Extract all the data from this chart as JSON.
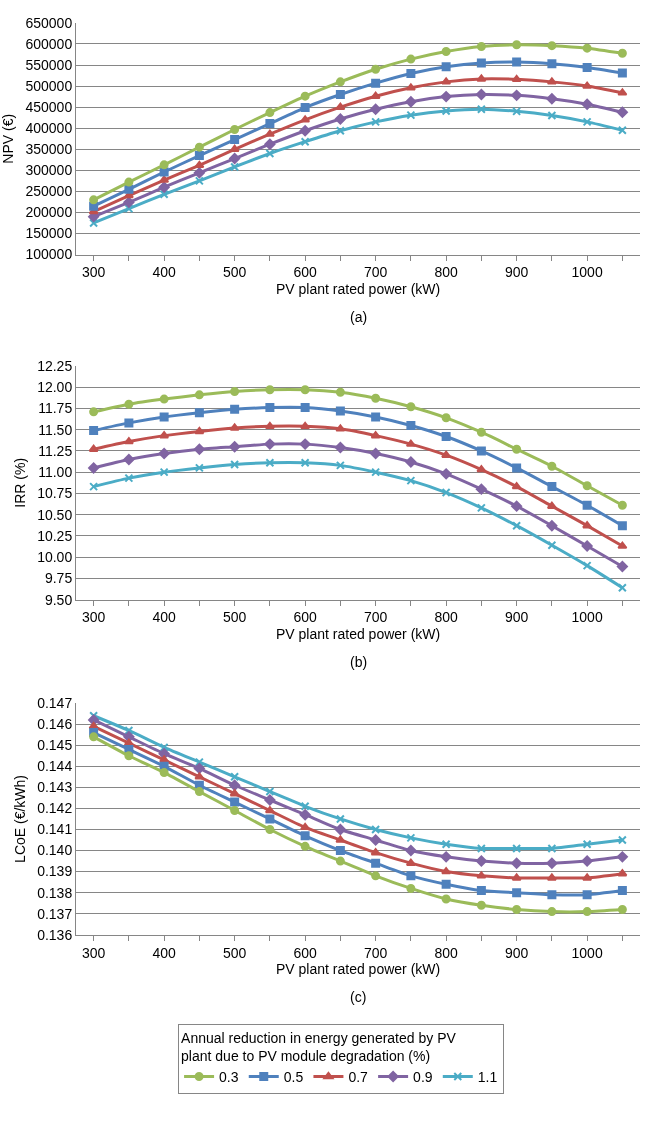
{
  "chart_data": [
    {
      "type": "line",
      "ylabel": "NPV (€)",
      "xlabel": "PV plant rated power (kW)",
      "annotations": [
        "(a)"
      ],
      "legend": "bottom",
      "x": [
        300,
        350,
        400,
        450,
        500,
        550,
        600,
        650,
        700,
        750,
        800,
        850,
        900,
        950,
        1000,
        1050
      ],
      "xlim": [
        275,
        1075
      ],
      "xticks": [
        300,
        {
          "value": 350,
          "label": null
        },
        400,
        {
          "value": 450,
          "label": null
        },
        500,
        {
          "value": 550,
          "label": null
        },
        600,
        {
          "value": 650,
          "label": null
        },
        700,
        {
          "value": 750,
          "label": null
        },
        800,
        {
          "value": 850,
          "label": null
        },
        900,
        {
          "value": 950,
          "label": null
        },
        1000,
        {
          "value": 1050,
          "label": null
        }
      ],
      "ylim": [
        100000,
        650000
      ],
      "yticks": [
        100000,
        150000,
        200000,
        250000,
        300000,
        350000,
        400000,
        450000,
        500000,
        550000,
        600000,
        650000
      ],
      "grid": "y",
      "line_style": "solid",
      "series": [
        {
          "name": "0.3",
          "color": "#9bbb59",
          "marker": "circle",
          "values": [
            230000,
            272000,
            313000,
            355000,
            397000,
            437000,
            476000,
            510000,
            540000,
            564000,
            582000,
            594000,
            598000,
            596000,
            590000,
            578000
          ]
        },
        {
          "name": "0.5",
          "color": "#4f81bd",
          "marker": "square",
          "values": [
            215000,
            255000,
            296000,
            335000,
            373000,
            411000,
            449000,
            480000,
            507000,
            530000,
            546000,
            555000,
            557000,
            553000,
            544000,
            531000
          ]
        },
        {
          "name": "0.7",
          "color": "#c0504d",
          "marker": "triangle",
          "values": [
            202000,
            240000,
            277000,
            312000,
            350000,
            386000,
            420000,
            450000,
            476000,
            496000,
            510000,
            517000,
            516000,
            510000,
            500000,
            484000
          ]
        },
        {
          "name": "0.9",
          "color": "#8064a2",
          "marker": "diamond",
          "values": [
            190000,
            224000,
            260000,
            294000,
            328000,
            362000,
            394000,
            422000,
            445000,
            463000,
            475000,
            480000,
            478000,
            470000,
            457000,
            438000
          ]
        },
        {
          "name": "1.1",
          "color": "#4bacc6",
          "marker": "cross",
          "values": [
            175000,
            209000,
            243000,
            275000,
            308000,
            340000,
            368000,
            394000,
            415000,
            431000,
            441000,
            445000,
            440000,
            430000,
            415000,
            395000
          ]
        }
      ]
    },
    {
      "type": "line",
      "ylabel": "IRR (%)",
      "xlabel": "PV plant rated power (kW)",
      "annotations": [
        "(b)"
      ],
      "legend": "bottom",
      "x": [
        300,
        350,
        400,
        450,
        500,
        550,
        600,
        650,
        700,
        750,
        800,
        850,
        900,
        950,
        1000,
        1050
      ],
      "xlim": [
        275,
        1075
      ],
      "xticks": [
        300,
        {
          "value": 350,
          "label": null
        },
        400,
        {
          "value": 450,
          "label": null
        },
        500,
        {
          "value": 550,
          "label": null
        },
        600,
        {
          "value": 650,
          "label": null
        },
        700,
        {
          "value": 750,
          "label": null
        },
        800,
        {
          "value": 850,
          "label": null
        },
        900,
        {
          "value": 950,
          "label": null
        },
        1000,
        {
          "value": 1050,
          "label": null
        }
      ],
      "ylim": [
        9.5,
        12.25
      ],
      "yticks": [
        {
          "value": 9.5,
          "label": "9.50"
        },
        {
          "value": 9.75,
          "label": "9.75"
        },
        {
          "value": 10,
          "label": "10.00"
        },
        {
          "value": 10.25,
          "label": "10.25"
        },
        {
          "value": 10.5,
          "label": "10.50"
        },
        {
          "value": 10.75,
          "label": "10.75"
        },
        {
          "value": 11,
          "label": "11.00"
        },
        {
          "value": 11.25,
          "label": "11.25"
        },
        {
          "value": 11.5,
          "label": "11.50"
        },
        {
          "value": 11.75,
          "label": "11.75"
        },
        {
          "value": 12,
          "label": "12.00"
        },
        {
          "value": 12.25,
          "label": "12.25"
        }
      ],
      "grid": "y",
      "line_style": "solid",
      "series": [
        {
          "name": "0.3",
          "color": "#9bbb59",
          "marker": "circle",
          "values": [
            11.71,
            11.8,
            11.86,
            11.91,
            11.95,
            11.97,
            11.97,
            11.94,
            11.87,
            11.77,
            11.64,
            11.47,
            11.27,
            11.07,
            10.84,
            10.61
          ]
        },
        {
          "name": "0.5",
          "color": "#4f81bd",
          "marker": "square",
          "values": [
            11.49,
            11.58,
            11.65,
            11.7,
            11.74,
            11.76,
            11.76,
            11.72,
            11.65,
            11.55,
            11.42,
            11.25,
            11.05,
            10.83,
            10.61,
            10.37
          ]
        },
        {
          "name": "0.7",
          "color": "#c0504d",
          "marker": "triangle",
          "values": [
            11.27,
            11.36,
            11.43,
            11.48,
            11.52,
            11.54,
            11.54,
            11.51,
            11.43,
            11.33,
            11.2,
            11.03,
            10.83,
            10.6,
            10.37,
            10.13
          ]
        },
        {
          "name": "0.9",
          "color": "#8064a2",
          "marker": "diamond",
          "values": [
            11.05,
            11.15,
            11.22,
            11.27,
            11.3,
            11.33,
            11.33,
            11.29,
            11.22,
            11.12,
            10.98,
            10.8,
            10.6,
            10.37,
            10.13,
            9.89
          ]
        },
        {
          "name": "1.1",
          "color": "#4bacc6",
          "marker": "cross",
          "values": [
            10.83,
            10.93,
            11.0,
            11.05,
            11.09,
            11.11,
            11.11,
            11.08,
            11.0,
            10.9,
            10.76,
            10.58,
            10.37,
            10.14,
            9.9,
            9.64
          ]
        }
      ]
    },
    {
      "type": "line",
      "ylabel": "LCoE (€/kWh)",
      "xlabel": "PV plant rated power (kW)",
      "annotations": [
        "(c)"
      ],
      "legend": "bottom",
      "legend_title": "Annual reduction in energy generated by PV plant due to PV module degradation (%)",
      "x": [
        300,
        350,
        400,
        450,
        500,
        550,
        600,
        650,
        700,
        750,
        800,
        850,
        900,
        950,
        1000,
        1050
      ],
      "xlim": [
        275,
        1075
      ],
      "xticks": [
        300,
        {
          "value": 350,
          "label": null
        },
        400,
        {
          "value": 450,
          "label": null
        },
        500,
        {
          "value": 550,
          "label": null
        },
        600,
        {
          "value": 650,
          "label": null
        },
        700,
        {
          "value": 750,
          "label": null
        },
        800,
        {
          "value": 850,
          "label": null
        },
        900,
        {
          "value": 950,
          "label": null
        },
        1000,
        {
          "value": 1050,
          "label": null
        }
      ],
      "ylim": [
        0.136,
        0.147
      ],
      "yticks": [
        0.136,
        0.137,
        0.138,
        0.139,
        {
          "value": 0.14,
          "label": "0.140"
        },
        0.141,
        0.142,
        0.143,
        0.144,
        0.145,
        0.146,
        0.147
      ],
      "grid": "y",
      "line_style": "solid",
      "series": [
        {
          "name": "0.3",
          "color": "#9bbb59",
          "marker": "circle",
          "values": [
            0.1454,
            0.1445,
            0.1437,
            0.1428,
            0.1419,
            0.141,
            0.1402,
            0.1395,
            0.1388,
            0.1382,
            0.1377,
            0.1374,
            0.1372,
            0.1371,
            0.1371,
            0.1372
          ]
        },
        {
          "name": "0.5",
          "color": "#4f81bd",
          "marker": "square",
          "values": [
            0.1456,
            0.1448,
            0.144,
            0.1431,
            0.1423,
            0.1415,
            0.1407,
            0.14,
            0.1394,
            0.1388,
            0.1384,
            0.1381,
            0.138,
            0.1379,
            0.1379,
            0.1381
          ]
        },
        {
          "name": "0.7",
          "color": "#c0504d",
          "marker": "triangle",
          "values": [
            0.1459,
            0.1451,
            0.1443,
            0.1435,
            0.1427,
            0.1419,
            0.1411,
            0.1405,
            0.1399,
            0.1394,
            0.139,
            0.1388,
            0.1387,
            0.1387,
            0.1387,
            0.1389
          ]
        },
        {
          "name": "0.9",
          "color": "#8064a2",
          "marker": "diamond",
          "values": [
            0.1462,
            0.1454,
            0.1446,
            0.1439,
            0.1431,
            0.1424,
            0.1417,
            0.141,
            0.1405,
            0.14,
            0.1397,
            0.1395,
            0.1394,
            0.1394,
            0.1395,
            0.1397
          ]
        },
        {
          "name": "1.1",
          "color": "#4bacc6",
          "marker": "cross",
          "values": [
            0.1464,
            0.1457,
            0.1449,
            0.1442,
            0.1435,
            0.1428,
            0.1421,
            0.1415,
            0.141,
            0.1406,
            0.1403,
            0.1401,
            0.1401,
            0.1401,
            0.1403,
            0.1405
          ]
        }
      ]
    }
  ]
}
